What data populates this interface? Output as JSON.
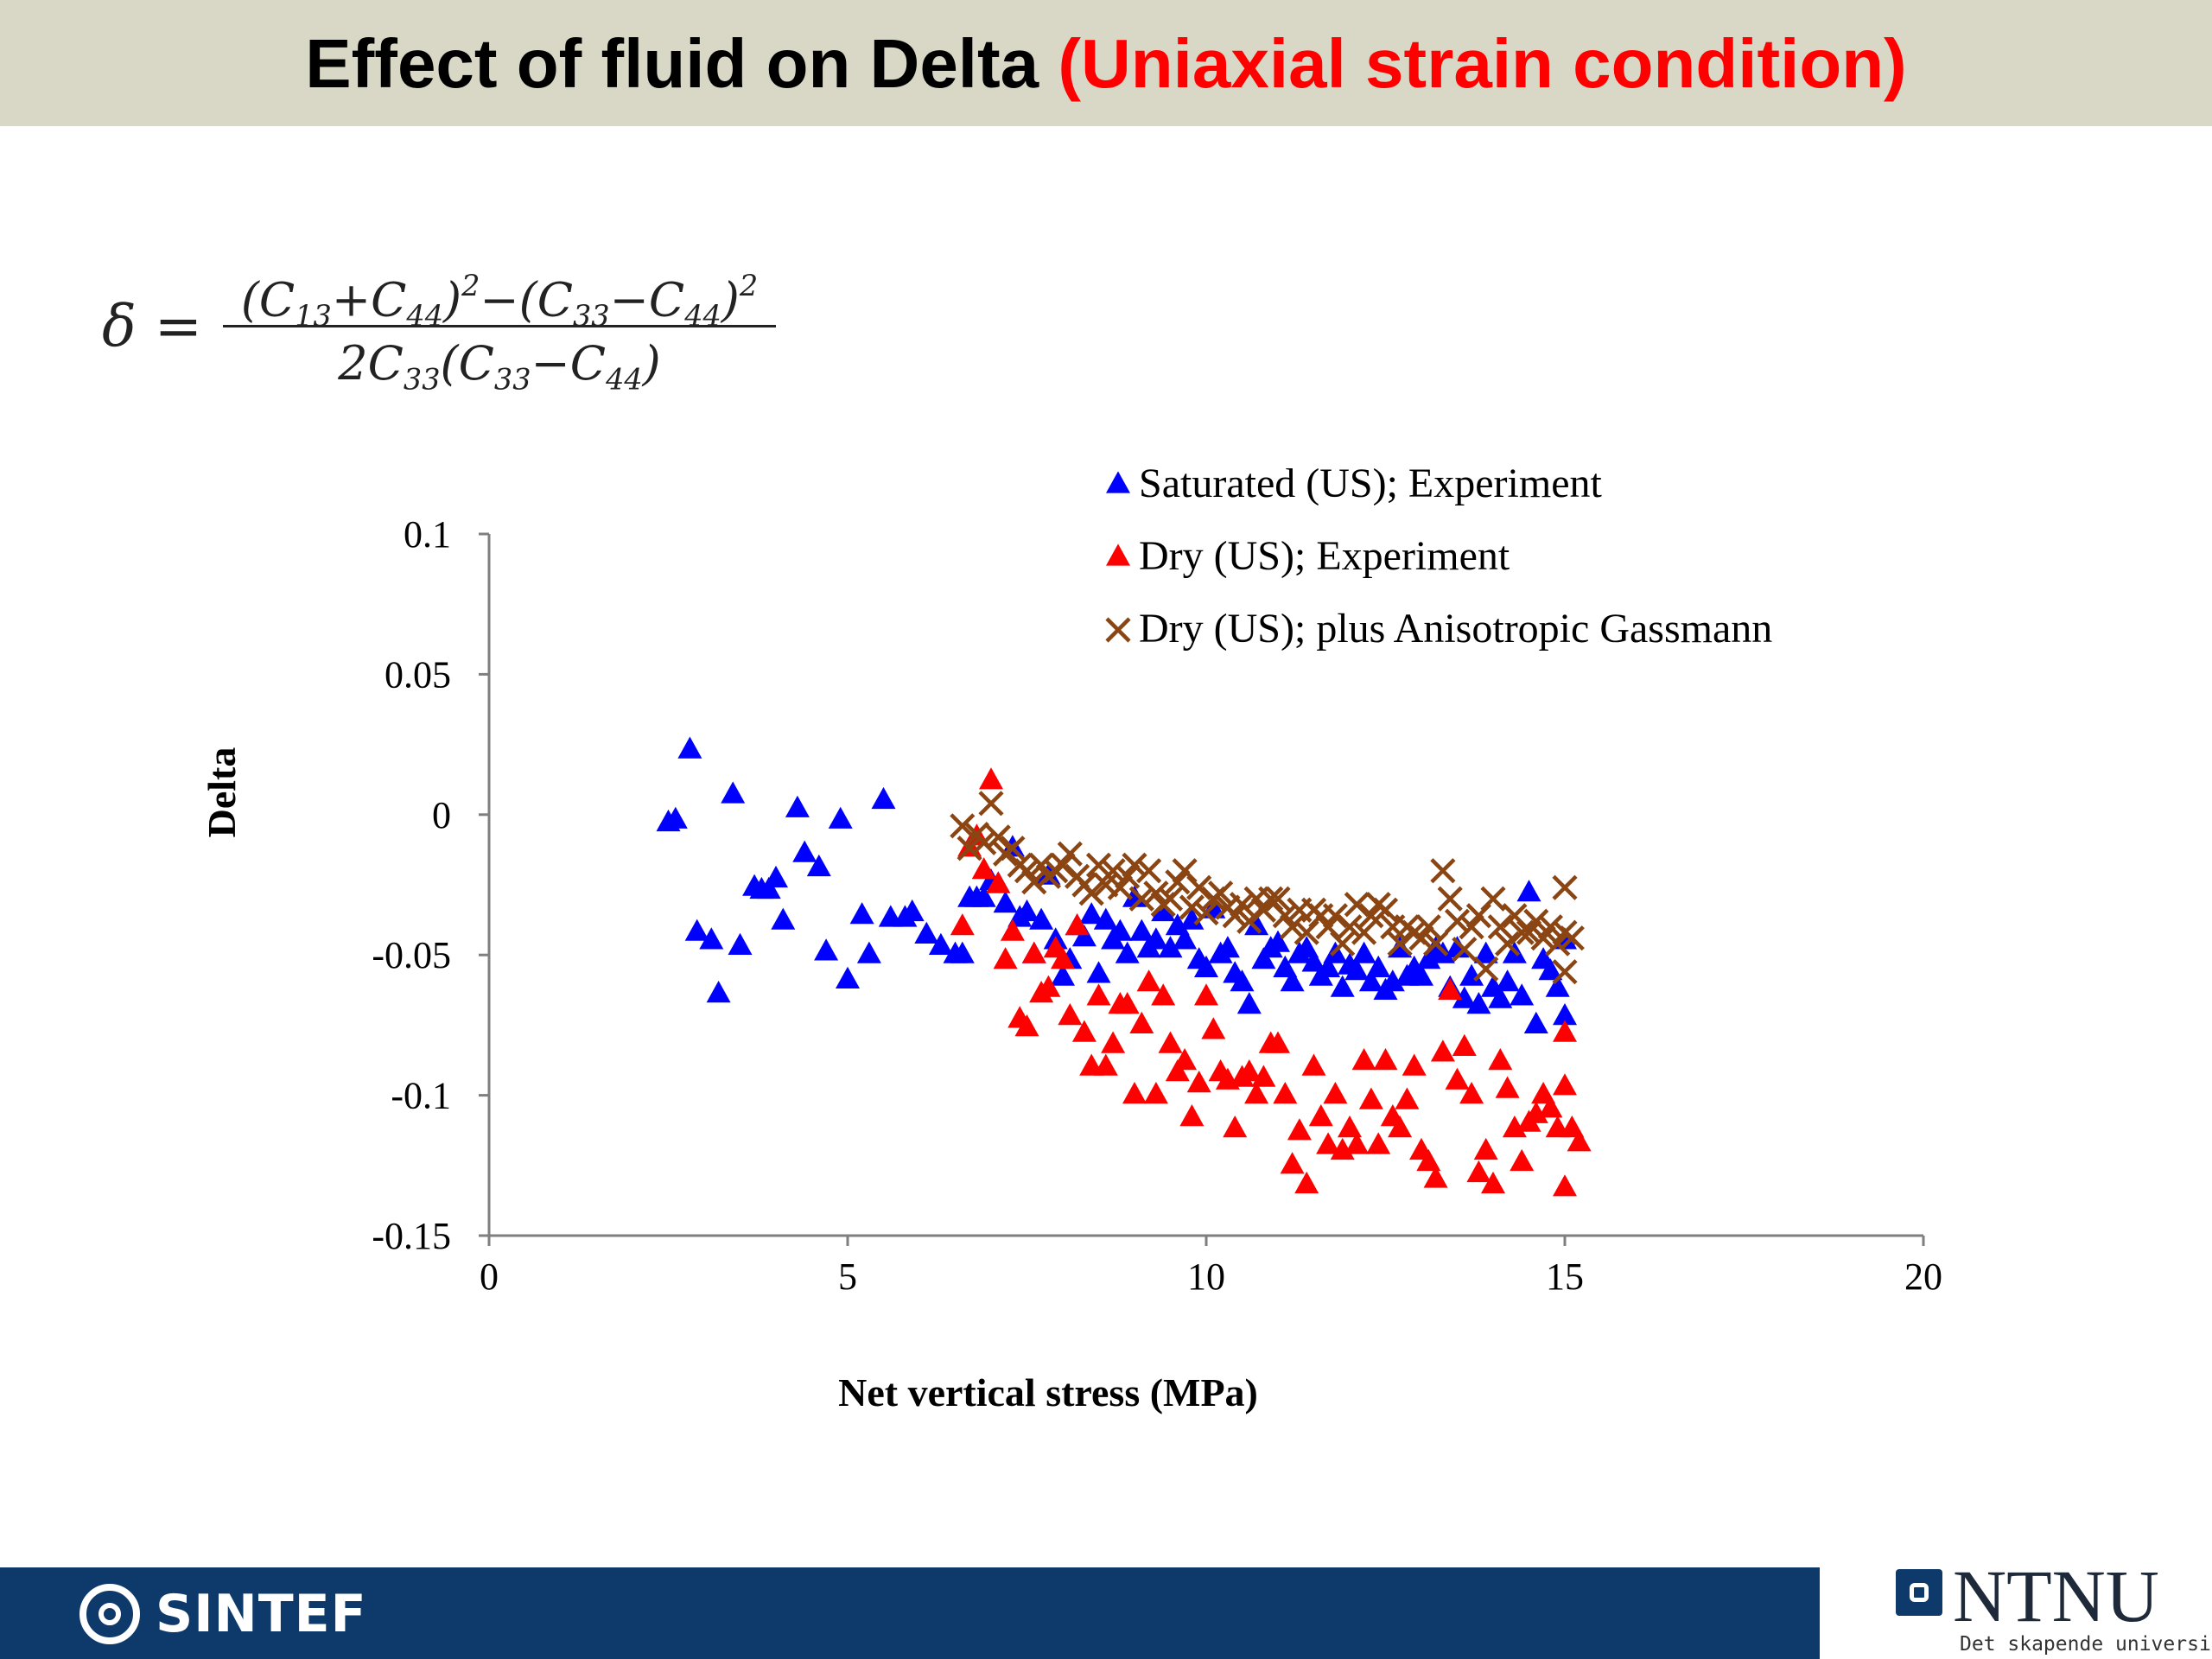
{
  "slide": {
    "title_main": "Effect of fluid on Delta ",
    "title_highlight": "(Uniaxial strain condition)"
  },
  "formula": {
    "lhs": "δ =",
    "numerator": "(C13+C44)2−(C33−C44)2",
    "denominator": "2C33(C33−C44)"
  },
  "colors": {
    "title_band": "#d9d8c6",
    "title_highlight": "#ff0000",
    "saturated": "#0000ff",
    "dry": "#ff0000",
    "gassmann": "#8b4513",
    "footer": "#0d3a6b"
  },
  "chart_data": {
    "type": "scatter",
    "xlabel": "Net vertical stress (MPa)",
    "ylabel": "Delta",
    "xlim": [
      0,
      20
    ],
    "ylim": [
      -0.15,
      0.1
    ],
    "xticks": [
      0,
      5,
      10,
      15,
      20
    ],
    "xtick_labels": [
      "0",
      "5",
      "10",
      "15",
      "20"
    ],
    "yticks": [
      0.1,
      0.05,
      0,
      -0.05,
      -0.1,
      -0.15
    ],
    "ytick_labels": [
      "0.1",
      "0.05",
      "0",
      "-0.05",
      "-0.1",
      "-0.15"
    ],
    "grid": false,
    "legend_position": "top-right",
    "series": [
      {
        "name": "Saturated (US); Experiment",
        "marker": "triangle",
        "color": "#0000ff",
        "points": [
          [
            2.5,
            -0.003
          ],
          [
            2.6,
            -0.002
          ],
          [
            2.8,
            0.023
          ],
          [
            2.9,
            -0.042
          ],
          [
            3.1,
            -0.045
          ],
          [
            3.2,
            -0.064
          ],
          [
            3.4,
            0.007
          ],
          [
            3.5,
            -0.047
          ],
          [
            3.7,
            -0.026
          ],
          [
            3.8,
            -0.027
          ],
          [
            3.9,
            -0.027
          ],
          [
            4.0,
            -0.023
          ],
          [
            4.1,
            -0.038
          ],
          [
            4.3,
            0.002
          ],
          [
            4.4,
            -0.014
          ],
          [
            4.6,
            -0.019
          ],
          [
            4.7,
            -0.049
          ],
          [
            4.9,
            -0.002
          ],
          [
            5.0,
            -0.059
          ],
          [
            5.2,
            -0.036
          ],
          [
            5.3,
            -0.05
          ],
          [
            5.5,
            0.005
          ],
          [
            5.6,
            -0.037
          ],
          [
            5.8,
            -0.037
          ],
          [
            5.9,
            -0.035
          ],
          [
            6.1,
            -0.043
          ],
          [
            6.3,
            -0.047
          ],
          [
            6.5,
            -0.05
          ],
          [
            6.6,
            -0.05
          ],
          [
            6.7,
            -0.03
          ],
          [
            6.8,
            -0.03
          ],
          [
            6.9,
            -0.03
          ],
          [
            7.0,
            -0.024
          ],
          [
            7.1,
            -0.025
          ],
          [
            7.2,
            -0.032
          ],
          [
            7.3,
            -0.012
          ],
          [
            7.4,
            -0.037
          ],
          [
            7.5,
            -0.035
          ],
          [
            7.6,
            -0.05
          ],
          [
            7.7,
            -0.038
          ],
          [
            7.8,
            -0.022
          ],
          [
            7.9,
            -0.045
          ],
          [
            8.0,
            -0.058
          ],
          [
            8.1,
            -0.052
          ],
          [
            8.2,
            -0.04
          ],
          [
            8.3,
            -0.044
          ],
          [
            8.4,
            -0.036
          ],
          [
            8.5,
            -0.057
          ],
          [
            8.6,
            -0.038
          ],
          [
            8.7,
            -0.045
          ],
          [
            8.8,
            -0.042
          ],
          [
            8.9,
            -0.05
          ],
          [
            9.0,
            -0.03
          ],
          [
            9.1,
            -0.042
          ],
          [
            9.2,
            -0.048
          ],
          [
            9.3,
            -0.045
          ],
          [
            9.4,
            -0.035
          ],
          [
            9.5,
            -0.048
          ],
          [
            9.6,
            -0.04
          ],
          [
            9.7,
            -0.045
          ],
          [
            9.8,
            -0.038
          ],
          [
            9.9,
            -0.052
          ],
          [
            10.0,
            -0.055
          ],
          [
            10.1,
            -0.034
          ],
          [
            10.2,
            -0.05
          ],
          [
            10.3,
            -0.048
          ],
          [
            10.4,
            -0.057
          ],
          [
            10.5,
            -0.06
          ],
          [
            10.6,
            -0.068
          ],
          [
            10.7,
            -0.04
          ],
          [
            10.8,
            -0.052
          ],
          [
            10.9,
            -0.048
          ],
          [
            11.0,
            -0.046
          ],
          [
            11.1,
            -0.055
          ],
          [
            11.2,
            -0.06
          ],
          [
            11.3,
            -0.05
          ],
          [
            11.4,
            -0.048
          ],
          [
            11.5,
            -0.053
          ],
          [
            11.6,
            -0.058
          ],
          [
            11.7,
            -0.055
          ],
          [
            11.8,
            -0.05
          ],
          [
            11.9,
            -0.062
          ],
          [
            12.0,
            -0.054
          ],
          [
            12.1,
            -0.056
          ],
          [
            12.2,
            -0.05
          ],
          [
            12.3,
            -0.06
          ],
          [
            12.4,
            -0.055
          ],
          [
            12.5,
            -0.063
          ],
          [
            12.6,
            -0.06
          ],
          [
            12.7,
            -0.048
          ],
          [
            12.8,
            -0.058
          ],
          [
            12.9,
            -0.055
          ],
          [
            13.0,
            -0.058
          ],
          [
            13.1,
            -0.052
          ],
          [
            13.2,
            -0.048
          ],
          [
            13.3,
            -0.05
          ],
          [
            13.4,
            -0.062
          ],
          [
            13.5,
            -0.048
          ],
          [
            13.6,
            -0.066
          ],
          [
            13.7,
            -0.058
          ],
          [
            13.8,
            -0.068
          ],
          [
            13.9,
            -0.05
          ],
          [
            14.0,
            -0.062
          ],
          [
            14.1,
            -0.066
          ],
          [
            14.2,
            -0.06
          ],
          [
            14.3,
            -0.05
          ],
          [
            14.4,
            -0.065
          ],
          [
            14.5,
            -0.028
          ],
          [
            14.6,
            -0.075
          ],
          [
            14.7,
            -0.052
          ],
          [
            14.8,
            -0.056
          ],
          [
            14.9,
            -0.062
          ],
          [
            15.0,
            -0.045
          ],
          [
            15.0,
            -0.072
          ]
        ]
      },
      {
        "name": "Dry (US); Experiment",
        "marker": "triangle",
        "color": "#ff0000",
        "points": [
          [
            6.6,
            -0.04
          ],
          [
            6.7,
            -0.012
          ],
          [
            6.8,
            -0.008
          ],
          [
            6.9,
            -0.02
          ],
          [
            7.0,
            0.012
          ],
          [
            7.1,
            -0.025
          ],
          [
            7.2,
            -0.052
          ],
          [
            7.3,
            -0.042
          ],
          [
            7.4,
            -0.073
          ],
          [
            7.5,
            -0.076
          ],
          [
            7.6,
            -0.05
          ],
          [
            7.7,
            -0.064
          ],
          [
            7.8,
            -0.062
          ],
          [
            7.9,
            -0.048
          ],
          [
            8.0,
            -0.052
          ],
          [
            8.1,
            -0.072
          ],
          [
            8.2,
            -0.04
          ],
          [
            8.3,
            -0.078
          ],
          [
            8.4,
            -0.09
          ],
          [
            8.5,
            -0.065
          ],
          [
            8.6,
            -0.09
          ],
          [
            8.7,
            -0.082
          ],
          [
            8.8,
            -0.068
          ],
          [
            8.9,
            -0.068
          ],
          [
            9.0,
            -0.1
          ],
          [
            9.1,
            -0.075
          ],
          [
            9.2,
            -0.06
          ],
          [
            9.3,
            -0.1
          ],
          [
            9.4,
            -0.065
          ],
          [
            9.5,
            -0.082
          ],
          [
            9.6,
            -0.092
          ],
          [
            9.7,
            -0.088
          ],
          [
            9.8,
            -0.108
          ],
          [
            9.9,
            -0.096
          ],
          [
            10.0,
            -0.065
          ],
          [
            10.1,
            -0.077
          ],
          [
            10.2,
            -0.092
          ],
          [
            10.3,
            -0.095
          ],
          [
            10.4,
            -0.112
          ],
          [
            10.5,
            -0.094
          ],
          [
            10.6,
            -0.092
          ],
          [
            10.7,
            -0.1
          ],
          [
            10.8,
            -0.094
          ],
          [
            10.9,
            -0.082
          ],
          [
            11.0,
            -0.082
          ],
          [
            11.1,
            -0.1
          ],
          [
            11.2,
            -0.125
          ],
          [
            11.3,
            -0.113
          ],
          [
            11.4,
            -0.132
          ],
          [
            11.5,
            -0.09
          ],
          [
            11.6,
            -0.108
          ],
          [
            11.7,
            -0.118
          ],
          [
            11.8,
            -0.1
          ],
          [
            11.9,
            -0.12
          ],
          [
            12.0,
            -0.112
          ],
          [
            12.1,
            -0.118
          ],
          [
            12.2,
            -0.088
          ],
          [
            12.3,
            -0.102
          ],
          [
            12.4,
            -0.118
          ],
          [
            12.5,
            -0.088
          ],
          [
            12.6,
            -0.108
          ],
          [
            12.7,
            -0.112
          ],
          [
            12.8,
            -0.102
          ],
          [
            12.9,
            -0.09
          ],
          [
            13.0,
            -0.12
          ],
          [
            13.1,
            -0.124
          ],
          [
            13.2,
            -0.13
          ],
          [
            13.3,
            -0.085
          ],
          [
            13.4,
            -0.063
          ],
          [
            13.5,
            -0.095
          ],
          [
            13.6,
            -0.083
          ],
          [
            13.7,
            -0.1
          ],
          [
            13.8,
            -0.128
          ],
          [
            13.9,
            -0.12
          ],
          [
            14.0,
            -0.132
          ],
          [
            14.1,
            -0.088
          ],
          [
            14.2,
            -0.098
          ],
          [
            14.3,
            -0.112
          ],
          [
            14.4,
            -0.124
          ],
          [
            14.5,
            -0.11
          ],
          [
            14.6,
            -0.107
          ],
          [
            14.7,
            -0.1
          ],
          [
            14.8,
            -0.105
          ],
          [
            14.9,
            -0.112
          ],
          [
            15.0,
            -0.097
          ],
          [
            15.0,
            -0.078
          ],
          [
            15.0,
            -0.133
          ],
          [
            15.1,
            -0.112
          ],
          [
            15.2,
            -0.117
          ]
        ]
      },
      {
        "name": "Dry (US); plus Anisotropic Gassmann",
        "marker": "x",
        "color": "#8b4513",
        "points": [
          [
            6.6,
            -0.004
          ],
          [
            6.7,
            -0.012
          ],
          [
            6.8,
            -0.007
          ],
          [
            6.9,
            -0.01
          ],
          [
            7.0,
            0.004
          ],
          [
            7.1,
            -0.008
          ],
          [
            7.2,
            -0.014
          ],
          [
            7.3,
            -0.012
          ],
          [
            7.4,
            -0.018
          ],
          [
            7.5,
            -0.02
          ],
          [
            7.6,
            -0.024
          ],
          [
            7.7,
            -0.018
          ],
          [
            7.8,
            -0.022
          ],
          [
            7.9,
            -0.02
          ],
          [
            8.0,
            -0.018
          ],
          [
            8.1,
            -0.014
          ],
          [
            8.2,
            -0.022
          ],
          [
            8.3,
            -0.025
          ],
          [
            8.4,
            -0.028
          ],
          [
            8.5,
            -0.018
          ],
          [
            8.6,
            -0.025
          ],
          [
            8.7,
            -0.02
          ],
          [
            8.8,
            -0.026
          ],
          [
            8.9,
            -0.022
          ],
          [
            9.0,
            -0.018
          ],
          [
            9.1,
            -0.03
          ],
          [
            9.2,
            -0.02
          ],
          [
            9.3,
            -0.028
          ],
          [
            9.4,
            -0.032
          ],
          [
            9.5,
            -0.03
          ],
          [
            9.6,
            -0.024
          ],
          [
            9.7,
            -0.02
          ],
          [
            9.8,
            -0.033
          ],
          [
            9.9,
            -0.026
          ],
          [
            10.0,
            -0.035
          ],
          [
            10.1,
            -0.03
          ],
          [
            10.2,
            -0.028
          ],
          [
            10.3,
            -0.033
          ],
          [
            10.4,
            -0.036
          ],
          [
            10.5,
            -0.032
          ],
          [
            10.6,
            -0.038
          ],
          [
            10.7,
            -0.03
          ],
          [
            10.8,
            -0.034
          ],
          [
            10.9,
            -0.03
          ],
          [
            11.0,
            -0.03
          ],
          [
            11.1,
            -0.036
          ],
          [
            11.2,
            -0.04
          ],
          [
            11.3,
            -0.034
          ],
          [
            11.4,
            -0.042
          ],
          [
            11.5,
            -0.034
          ],
          [
            11.6,
            -0.036
          ],
          [
            11.7,
            -0.04
          ],
          [
            11.8,
            -0.036
          ],
          [
            11.9,
            -0.046
          ],
          [
            12.0,
            -0.04
          ],
          [
            12.1,
            -0.032
          ],
          [
            12.2,
            -0.042
          ],
          [
            12.3,
            -0.036
          ],
          [
            12.4,
            -0.032
          ],
          [
            12.5,
            -0.034
          ],
          [
            12.6,
            -0.04
          ],
          [
            12.7,
            -0.046
          ],
          [
            12.8,
            -0.04
          ],
          [
            12.9,
            -0.042
          ],
          [
            13.0,
            -0.044
          ],
          [
            13.1,
            -0.04
          ],
          [
            13.2,
            -0.046
          ],
          [
            13.3,
            -0.02
          ],
          [
            13.4,
            -0.03
          ],
          [
            13.5,
            -0.038
          ],
          [
            13.6,
            -0.048
          ],
          [
            13.7,
            -0.04
          ],
          [
            13.8,
            -0.036
          ],
          [
            13.9,
            -0.055
          ],
          [
            14.0,
            -0.03
          ],
          [
            14.1,
            -0.04
          ],
          [
            14.2,
            -0.046
          ],
          [
            14.3,
            -0.036
          ],
          [
            14.4,
            -0.042
          ],
          [
            14.5,
            -0.042
          ],
          [
            14.6,
            -0.038
          ],
          [
            14.7,
            -0.044
          ],
          [
            14.8,
            -0.04
          ],
          [
            14.9,
            -0.046
          ],
          [
            15.0,
            -0.026
          ],
          [
            15.0,
            -0.042
          ],
          [
            15.0,
            -0.056
          ],
          [
            15.1,
            -0.044
          ]
        ]
      }
    ]
  },
  "footer": {
    "left_logo": "SINTEF",
    "right_logo": "NTNU",
    "right_tagline": "Det skapende universitet"
  }
}
